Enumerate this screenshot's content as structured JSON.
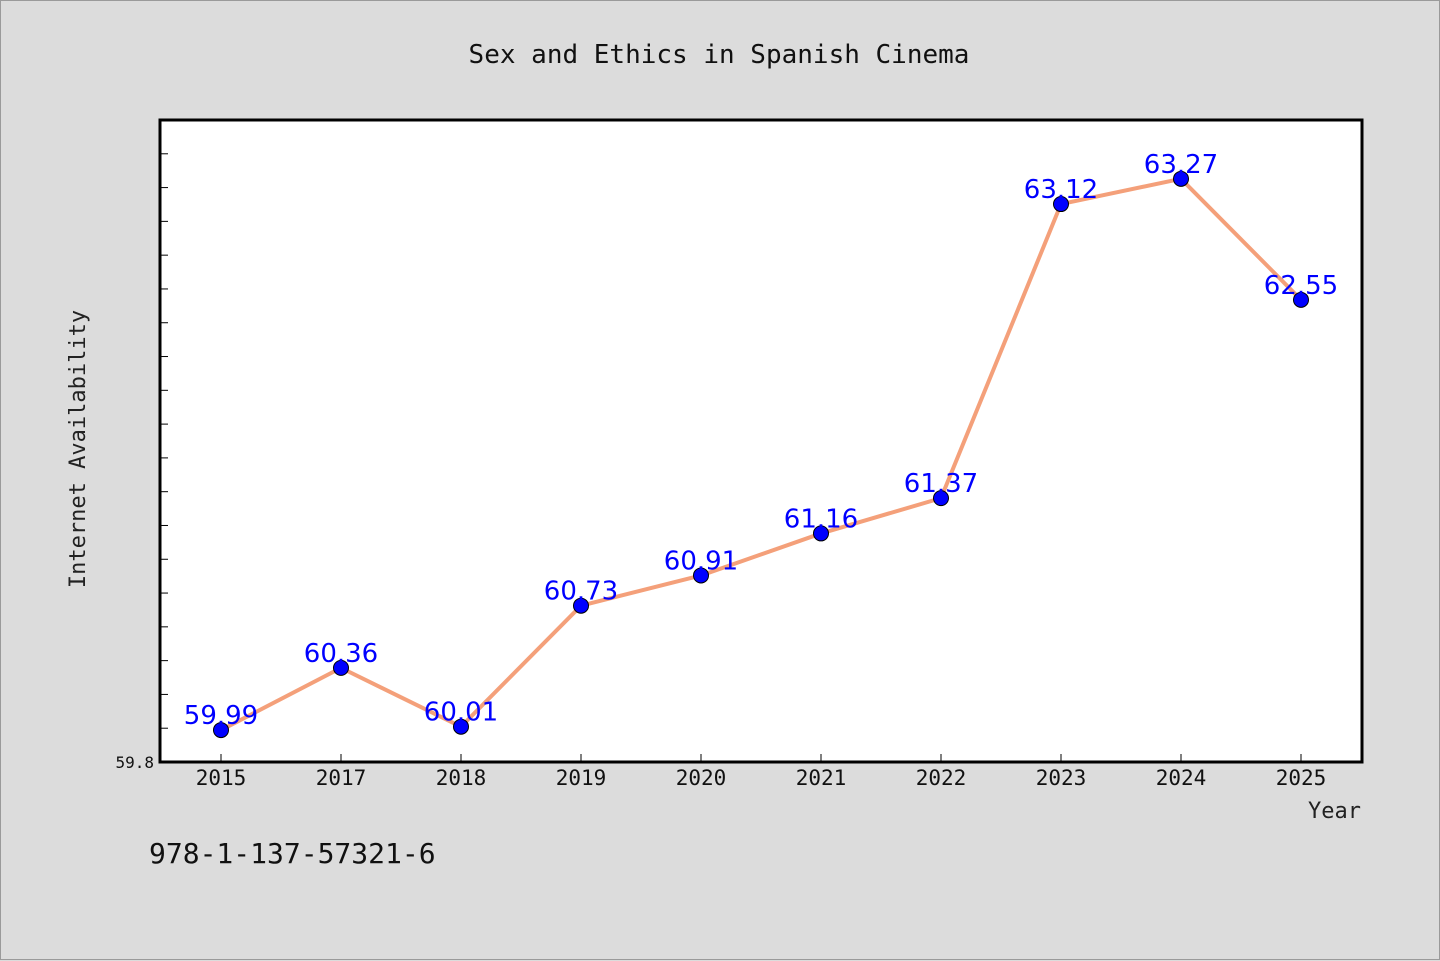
{
  "colors": {
    "background": "#dcdcdc",
    "plot_background": "#ffffff",
    "line": "#f4a07a",
    "marker": "#0000ff",
    "label": "#0000ff"
  },
  "isbn": "978-1-137-57321-6",
  "chart_data": {
    "type": "line",
    "title": "Sex and Ethics in Spanish Cinema",
    "xlabel": "Year",
    "ylabel": "Internet Availability",
    "categories": [
      "2015",
      "2017",
      "2018",
      "2019",
      "2020",
      "2021",
      "2022",
      "2023",
      "2024",
      "2025"
    ],
    "series": [
      {
        "values": [
          59.99,
          60.36,
          60.01,
          60.73,
          60.91,
          61.16,
          61.37,
          63.12,
          63.27,
          62.55
        ],
        "labels": [
          "59.99",
          "60.36",
          "60.01",
          "60.73",
          "60.91",
          "61.16",
          "61.37",
          "63.12",
          "63.27",
          "62.55"
        ]
      }
    ],
    "ylim": [
      59.8,
      63.62
    ],
    "ytick_labels": [
      "59.8"
    ],
    "grid": false,
    "legend": "none"
  }
}
